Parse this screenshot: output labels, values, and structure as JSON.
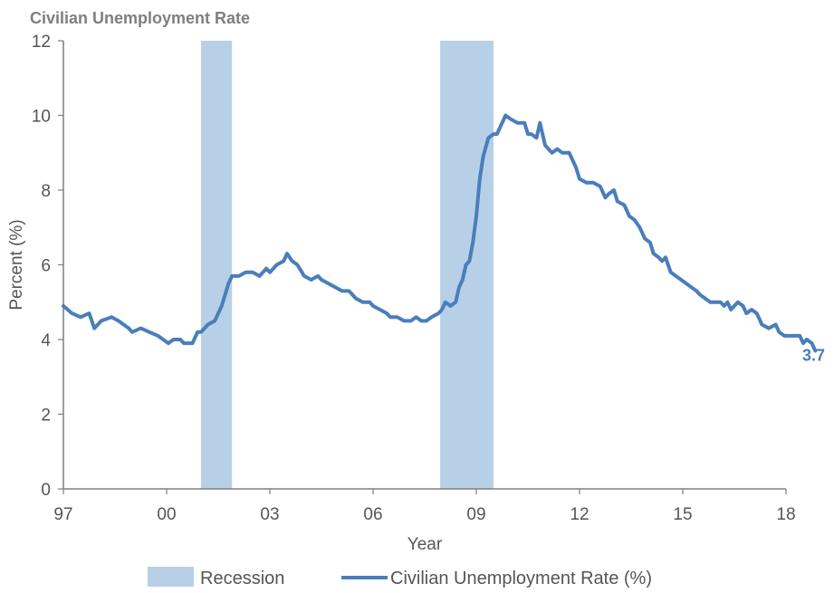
{
  "chart_data": {
    "type": "line",
    "title": "Civilian Unemployment Rate",
    "xlabel": "Year",
    "ylabel": "Percent (%)",
    "xlim": [
      1997,
      2018
    ],
    "ylim": [
      0,
      12
    ],
    "x_ticks": [
      {
        "value": 1997,
        "label": "97"
      },
      {
        "value": 2000,
        "label": "00"
      },
      {
        "value": 2003,
        "label": "03"
      },
      {
        "value": 2006,
        "label": "06"
      },
      {
        "value": 2009,
        "label": "09"
      },
      {
        "value": 2012,
        "label": "12"
      },
      {
        "value": 2015,
        "label": "15"
      },
      {
        "value": 2018,
        "label": "18"
      }
    ],
    "y_ticks": [
      {
        "value": 0,
        "label": "0"
      },
      {
        "value": 2,
        "label": "2"
      },
      {
        "value": 4,
        "label": "4"
      },
      {
        "value": 6,
        "label": "6"
      },
      {
        "value": 8,
        "label": "8"
      },
      {
        "value": 10,
        "label": "10"
      },
      {
        "value": 12,
        "label": "12"
      }
    ],
    "recessions": [
      {
        "start": 2001.0,
        "end": 2001.9
      },
      {
        "start": 2007.95,
        "end": 2009.5
      }
    ],
    "series": [
      {
        "name": "Civilian Unemployment Rate (%)",
        "color": "#4a7ebb",
        "end_label": "3.7",
        "points": [
          [
            1997.0,
            4.9
          ],
          [
            1997.25,
            4.7
          ],
          [
            1997.5,
            4.6
          ],
          [
            1997.75,
            4.7
          ],
          [
            1997.9,
            4.3
          ],
          [
            1998.1,
            4.5
          ],
          [
            1998.4,
            4.6
          ],
          [
            1998.6,
            4.5
          ],
          [
            1998.75,
            4.4
          ],
          [
            1998.9,
            4.3
          ],
          [
            1999.0,
            4.2
          ],
          [
            1999.25,
            4.3
          ],
          [
            1999.5,
            4.2
          ],
          [
            1999.75,
            4.1
          ],
          [
            1999.9,
            4.0
          ],
          [
            2000.05,
            3.9
          ],
          [
            2000.2,
            4.0
          ],
          [
            2000.4,
            4.0
          ],
          [
            2000.5,
            3.9
          ],
          [
            2000.75,
            3.9
          ],
          [
            2000.9,
            4.2
          ],
          [
            2001.0,
            4.2
          ],
          [
            2001.2,
            4.4
          ],
          [
            2001.4,
            4.5
          ],
          [
            2001.6,
            4.9
          ],
          [
            2001.8,
            5.5
          ],
          [
            2001.9,
            5.7
          ],
          [
            2002.1,
            5.7
          ],
          [
            2002.3,
            5.8
          ],
          [
            2002.5,
            5.8
          ],
          [
            2002.7,
            5.7
          ],
          [
            2002.9,
            5.9
          ],
          [
            2003.0,
            5.8
          ],
          [
            2003.2,
            6.0
          ],
          [
            2003.4,
            6.1
          ],
          [
            2003.5,
            6.3
          ],
          [
            2003.65,
            6.1
          ],
          [
            2003.8,
            6.0
          ],
          [
            2004.0,
            5.7
          ],
          [
            2004.2,
            5.6
          ],
          [
            2004.4,
            5.7
          ],
          [
            2004.5,
            5.6
          ],
          [
            2004.7,
            5.5
          ],
          [
            2004.9,
            5.4
          ],
          [
            2005.1,
            5.3
          ],
          [
            2005.3,
            5.3
          ],
          [
            2005.5,
            5.1
          ],
          [
            2005.7,
            5.0
          ],
          [
            2005.9,
            5.0
          ],
          [
            2006.0,
            4.9
          ],
          [
            2006.2,
            4.8
          ],
          [
            2006.4,
            4.7
          ],
          [
            2006.5,
            4.6
          ],
          [
            2006.7,
            4.6
          ],
          [
            2006.9,
            4.5
          ],
          [
            2007.1,
            4.5
          ],
          [
            2007.25,
            4.6
          ],
          [
            2007.4,
            4.5
          ],
          [
            2007.55,
            4.5
          ],
          [
            2007.7,
            4.6
          ],
          [
            2007.9,
            4.7
          ],
          [
            2008.0,
            4.8
          ],
          [
            2008.1,
            5.0
          ],
          [
            2008.25,
            4.9
          ],
          [
            2008.4,
            5.0
          ],
          [
            2008.5,
            5.4
          ],
          [
            2008.6,
            5.6
          ],
          [
            2008.7,
            6.0
          ],
          [
            2008.8,
            6.1
          ],
          [
            2008.9,
            6.6
          ],
          [
            2009.0,
            7.3
          ],
          [
            2009.1,
            8.3
          ],
          [
            2009.2,
            8.9
          ],
          [
            2009.35,
            9.4
          ],
          [
            2009.5,
            9.5
          ],
          [
            2009.6,
            9.5
          ],
          [
            2009.75,
            9.8
          ],
          [
            2009.85,
            10.0
          ],
          [
            2010.0,
            9.9
          ],
          [
            2010.2,
            9.8
          ],
          [
            2010.4,
            9.8
          ],
          [
            2010.5,
            9.5
          ],
          [
            2010.6,
            9.5
          ],
          [
            2010.75,
            9.4
          ],
          [
            2010.85,
            9.8
          ],
          [
            2011.0,
            9.2
          ],
          [
            2011.2,
            9.0
          ],
          [
            2011.35,
            9.1
          ],
          [
            2011.5,
            9.0
          ],
          [
            2011.7,
            9.0
          ],
          [
            2011.9,
            8.6
          ],
          [
            2012.0,
            8.3
          ],
          [
            2012.2,
            8.2
          ],
          [
            2012.4,
            8.2
          ],
          [
            2012.6,
            8.1
          ],
          [
            2012.75,
            7.8
          ],
          [
            2012.85,
            7.9
          ],
          [
            2013.0,
            8.0
          ],
          [
            2013.1,
            7.7
          ],
          [
            2013.3,
            7.6
          ],
          [
            2013.45,
            7.3
          ],
          [
            2013.6,
            7.2
          ],
          [
            2013.75,
            7.0
          ],
          [
            2013.9,
            6.7
          ],
          [
            2014.05,
            6.6
          ],
          [
            2014.15,
            6.3
          ],
          [
            2014.3,
            6.2
          ],
          [
            2014.4,
            6.1
          ],
          [
            2014.5,
            6.2
          ],
          [
            2014.65,
            5.8
          ],
          [
            2014.8,
            5.7
          ],
          [
            2014.95,
            5.6
          ],
          [
            2015.1,
            5.5
          ],
          [
            2015.25,
            5.4
          ],
          [
            2015.4,
            5.3
          ],
          [
            2015.5,
            5.2
          ],
          [
            2015.65,
            5.1
          ],
          [
            2015.8,
            5.0
          ],
          [
            2015.95,
            5.0
          ],
          [
            2016.1,
            5.0
          ],
          [
            2016.2,
            4.9
          ],
          [
            2016.3,
            5.0
          ],
          [
            2016.4,
            4.8
          ],
          [
            2016.5,
            4.9
          ],
          [
            2016.6,
            5.0
          ],
          [
            2016.75,
            4.9
          ],
          [
            2016.85,
            4.7
          ],
          [
            2017.0,
            4.8
          ],
          [
            2017.15,
            4.7
          ],
          [
            2017.3,
            4.4
          ],
          [
            2017.5,
            4.3
          ],
          [
            2017.7,
            4.4
          ],
          [
            2017.8,
            4.2
          ],
          [
            2017.95,
            4.1
          ],
          [
            2018.2,
            4.1
          ],
          [
            2018.4,
            4.1
          ],
          [
            2018.5,
            3.9
          ],
          [
            2018.6,
            4.0
          ],
          [
            2018.75,
            3.9
          ],
          [
            2018.85,
            3.7
          ]
        ]
      }
    ],
    "legend": [
      {
        "label": "Recession",
        "kind": "bar",
        "color": "#b8cfe8"
      },
      {
        "label": "Civilian Unemployment Rate (%)",
        "kind": "line",
        "color": "#4a7ebb"
      }
    ]
  }
}
